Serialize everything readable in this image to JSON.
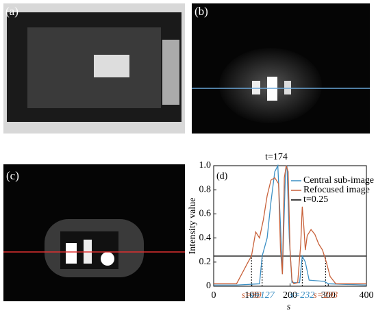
{
  "panels": {
    "a": "(a)",
    "b": "(b)",
    "c": "(c)"
  },
  "chart_data": {
    "type": "line",
    "panel_label": "(d)",
    "title": "t=174",
    "x_label": "s",
    "y_label": "Intensity value",
    "xlim": [
      0,
      400
    ],
    "xticks": [
      0,
      100,
      200,
      300,
      400
    ],
    "ylim": [
      0,
      1
    ],
    "yticks": [
      0,
      0.2,
      0.4,
      0.6,
      0.8,
      {
        "value": 1,
        "label": "1.0"
      }
    ],
    "series": [
      {
        "name": "Central sub-image",
        "color": "#3b8fc4",
        "x": [
          0,
          60,
          120,
          127,
          140,
          150,
          160,
          168,
          175,
          180,
          188,
          192,
          198,
          205,
          225,
          232,
          240,
          250,
          290,
          300,
          400
        ],
        "values": [
          0.01,
          0.01,
          0.02,
          0.25,
          0.4,
          0.7,
          0.95,
          1.0,
          0.5,
          0.1,
          0.95,
          1.0,
          0.4,
          0.03,
          0.03,
          0.25,
          0.2,
          0.05,
          0.04,
          0.02,
          0.01
        ]
      },
      {
        "name": "Refocused image",
        "color": "#c8613a",
        "x": [
          0,
          60,
          90,
          99,
          110,
          120,
          130,
          140,
          150,
          160,
          170,
          175,
          180,
          185,
          190,
          195,
          200,
          205,
          210,
          220,
          228,
          232,
          236,
          240,
          245,
          255,
          265,
          275,
          285,
          290,
          295,
          305,
          320,
          400
        ],
        "values": [
          0.02,
          0.02,
          0.2,
          0.25,
          0.45,
          0.4,
          0.55,
          0.75,
          0.88,
          0.9,
          0.85,
          0.3,
          0.1,
          0.9,
          1.0,
          0.95,
          0.3,
          0.05,
          0.02,
          0.03,
          0.35,
          0.66,
          0.5,
          0.3,
          0.42,
          0.47,
          0.43,
          0.35,
          0.3,
          0.25,
          0.2,
          0.08,
          0.02,
          0.02
        ]
      }
    ],
    "threshold": {
      "name": "t=0.25",
      "value": 0.25,
      "color": "#000000"
    },
    "annotations": [
      {
        "label": "s=99",
        "value": 99,
        "color": "#c8613a"
      },
      {
        "label": "s=127",
        "value": 127,
        "color": "#3b8fc4"
      },
      {
        "label": "s=232",
        "value": 232,
        "color": "#3b8fc4"
      },
      {
        "label": "s=293",
        "value": 293,
        "color": "#c8613a"
      }
    ]
  }
}
